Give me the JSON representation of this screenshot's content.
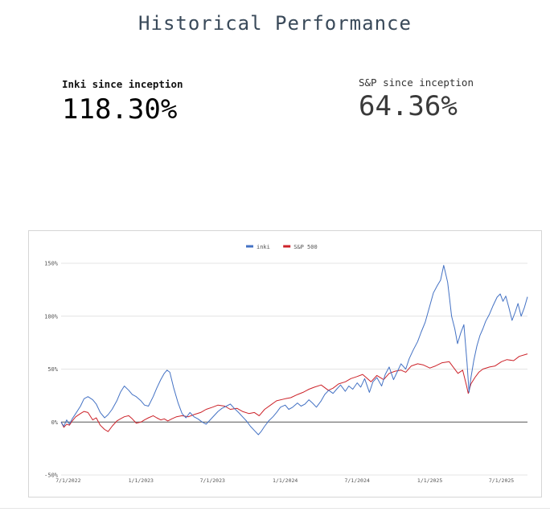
{
  "page": {
    "title": "Historical Performance"
  },
  "stats": [
    {
      "label": "Inki since inception",
      "value": "118.30%"
    },
    {
      "label": "S&P since inception",
      "value": "64.36%"
    }
  ],
  "chart_data": {
    "type": "line",
    "title": "",
    "xlabel": "",
    "ylabel": "",
    "x_range": [
      "2022-06-13",
      "2025-09-05"
    ],
    "xticks": [
      {
        "date": "2022-07-01",
        "label": "7/1/2022"
      },
      {
        "date": "2023-01-01",
        "label": "1/1/2023"
      },
      {
        "date": "2023-07-01",
        "label": "7/1/2023"
      },
      {
        "date": "2024-01-01",
        "label": "1/1/2024"
      },
      {
        "date": "2024-07-01",
        "label": "7/1/2024"
      },
      {
        "date": "2025-01-01",
        "label": "1/1/2025"
      },
      {
        "date": "2025-07-01",
        "label": "7/1/2025"
      }
    ],
    "ylim": [
      -50,
      150
    ],
    "yticks": [
      {
        "value": 150,
        "label": "150%"
      },
      {
        "value": 100,
        "label": "100%"
      },
      {
        "value": 50,
        "label": "50%"
      },
      {
        "value": 0,
        "label": "0%"
      },
      {
        "value": -50,
        "label": "-50%"
      }
    ],
    "grid": true,
    "legend_position": "top-center",
    "series": [
      {
        "name": "inki",
        "color": "#4472c4",
        "points": [
          [
            "2022-06-13",
            0
          ],
          [
            "2022-06-20",
            -4
          ],
          [
            "2022-06-27",
            2
          ],
          [
            "2022-07-04",
            -2
          ],
          [
            "2022-07-11",
            3
          ],
          [
            "2022-07-20",
            8
          ],
          [
            "2022-08-01",
            15
          ],
          [
            "2022-08-10",
            22
          ],
          [
            "2022-08-20",
            24
          ],
          [
            "2022-09-01",
            21
          ],
          [
            "2022-09-10",
            17
          ],
          [
            "2022-09-20",
            9
          ],
          [
            "2022-10-01",
            4
          ],
          [
            "2022-10-10",
            7
          ],
          [
            "2022-10-20",
            12
          ],
          [
            "2022-11-01",
            20
          ],
          [
            "2022-11-10",
            28
          ],
          [
            "2022-11-20",
            34
          ],
          [
            "2022-12-01",
            30
          ],
          [
            "2022-12-10",
            26
          ],
          [
            "2022-12-20",
            24
          ],
          [
            "2023-01-01",
            20
          ],
          [
            "2023-01-10",
            16
          ],
          [
            "2023-01-20",
            15
          ],
          [
            "2023-02-01",
            24
          ],
          [
            "2023-02-10",
            32
          ],
          [
            "2023-02-20",
            40
          ],
          [
            "2023-03-01",
            46
          ],
          [
            "2023-03-08",
            49
          ],
          [
            "2023-03-15",
            47
          ],
          [
            "2023-03-25",
            32
          ],
          [
            "2023-04-05",
            18
          ],
          [
            "2023-04-15",
            8
          ],
          [
            "2023-04-25",
            4
          ],
          [
            "2023-05-05",
            9
          ],
          [
            "2023-05-15",
            5
          ],
          [
            "2023-05-25",
            3
          ],
          [
            "2023-06-05",
            0
          ],
          [
            "2023-06-15",
            -2
          ],
          [
            "2023-06-25",
            2
          ],
          [
            "2023-07-05",
            6
          ],
          [
            "2023-07-15",
            10
          ],
          [
            "2023-07-25",
            13
          ],
          [
            "2023-08-05",
            15
          ],
          [
            "2023-08-15",
            17
          ],
          [
            "2023-08-25",
            13
          ],
          [
            "2023-09-05",
            9
          ],
          [
            "2023-09-15",
            5
          ],
          [
            "2023-09-25",
            1
          ],
          [
            "2023-10-05",
            -4
          ],
          [
            "2023-10-15",
            -8
          ],
          [
            "2023-10-25",
            -12
          ],
          [
            "2023-11-01",
            -9
          ],
          [
            "2023-11-10",
            -4
          ],
          [
            "2023-11-20",
            1
          ],
          [
            "2023-12-01",
            5
          ],
          [
            "2023-12-10",
            9
          ],
          [
            "2023-12-20",
            14
          ],
          [
            "2024-01-01",
            16
          ],
          [
            "2024-01-10",
            12
          ],
          [
            "2024-01-20",
            14
          ],
          [
            "2024-02-01",
            18
          ],
          [
            "2024-02-10",
            15
          ],
          [
            "2024-02-20",
            17
          ],
          [
            "2024-03-01",
            21
          ],
          [
            "2024-03-10",
            18
          ],
          [
            "2024-03-20",
            14
          ],
          [
            "2024-04-01",
            20
          ],
          [
            "2024-04-10",
            26
          ],
          [
            "2024-04-20",
            30
          ],
          [
            "2024-05-01",
            27
          ],
          [
            "2024-05-10",
            31
          ],
          [
            "2024-05-20",
            35
          ],
          [
            "2024-06-01",
            29
          ],
          [
            "2024-06-10",
            34
          ],
          [
            "2024-06-20",
            31
          ],
          [
            "2024-07-01",
            37
          ],
          [
            "2024-07-10",
            33
          ],
          [
            "2024-07-20",
            41
          ],
          [
            "2024-08-01",
            28
          ],
          [
            "2024-08-10",
            38
          ],
          [
            "2024-08-20",
            42
          ],
          [
            "2024-09-01",
            34
          ],
          [
            "2024-09-10",
            45
          ],
          [
            "2024-09-20",
            52
          ],
          [
            "2024-10-01",
            40
          ],
          [
            "2024-10-10",
            47
          ],
          [
            "2024-10-20",
            55
          ],
          [
            "2024-11-01",
            50
          ],
          [
            "2024-11-10",
            60
          ],
          [
            "2024-11-20",
            68
          ],
          [
            "2024-12-01",
            76
          ],
          [
            "2024-12-10",
            85
          ],
          [
            "2024-12-20",
            94
          ],
          [
            "2025-01-01",
            110
          ],
          [
            "2025-01-10",
            122
          ],
          [
            "2025-01-20",
            129
          ],
          [
            "2025-01-28",
            134
          ],
          [
            "2025-02-05",
            148
          ],
          [
            "2025-02-10",
            140
          ],
          [
            "2025-02-15",
            132
          ],
          [
            "2025-02-20",
            116
          ],
          [
            "2025-02-25",
            100
          ],
          [
            "2025-03-05",
            88
          ],
          [
            "2025-03-12",
            74
          ],
          [
            "2025-03-20",
            84
          ],
          [
            "2025-03-28",
            92
          ],
          [
            "2025-04-05",
            56
          ],
          [
            "2025-04-10",
            28
          ],
          [
            "2025-04-15",
            42
          ],
          [
            "2025-04-22",
            58
          ],
          [
            "2025-04-30",
            72
          ],
          [
            "2025-05-08",
            82
          ],
          [
            "2025-05-15",
            88
          ],
          [
            "2025-05-22",
            95
          ],
          [
            "2025-06-01",
            102
          ],
          [
            "2025-06-10",
            110
          ],
          [
            "2025-06-20",
            118
          ],
          [
            "2025-06-28",
            121
          ],
          [
            "2025-07-05",
            114
          ],
          [
            "2025-07-12",
            119
          ],
          [
            "2025-07-20",
            108
          ],
          [
            "2025-07-28",
            96
          ],
          [
            "2025-08-05",
            104
          ],
          [
            "2025-08-12",
            112
          ],
          [
            "2025-08-20",
            100
          ],
          [
            "2025-08-28",
            108
          ],
          [
            "2025-09-05",
            118.3
          ]
        ]
      },
      {
        "name": "S&P 500",
        "color": "#cc2229",
        "points": [
          [
            "2022-06-13",
            0
          ],
          [
            "2022-06-20",
            -5
          ],
          [
            "2022-06-27",
            -2
          ],
          [
            "2022-07-04",
            -3
          ],
          [
            "2022-07-11",
            1
          ],
          [
            "2022-07-20",
            5
          ],
          [
            "2022-08-01",
            8
          ],
          [
            "2022-08-10",
            10
          ],
          [
            "2022-08-20",
            9
          ],
          [
            "2022-09-01",
            2
          ],
          [
            "2022-09-10",
            4
          ],
          [
            "2022-09-20",
            -3
          ],
          [
            "2022-10-01",
            -7
          ],
          [
            "2022-10-10",
            -9
          ],
          [
            "2022-10-20",
            -4
          ],
          [
            "2022-11-01",
            1
          ],
          [
            "2022-11-10",
            3
          ],
          [
            "2022-11-20",
            5
          ],
          [
            "2022-12-01",
            6
          ],
          [
            "2022-12-10",
            3
          ],
          [
            "2022-12-20",
            -1
          ],
          [
            "2023-01-01",
            0
          ],
          [
            "2023-01-10",
            2
          ],
          [
            "2023-01-20",
            4
          ],
          [
            "2023-02-01",
            6
          ],
          [
            "2023-02-10",
            4
          ],
          [
            "2023-02-20",
            2
          ],
          [
            "2023-03-01",
            3
          ],
          [
            "2023-03-10",
            1
          ],
          [
            "2023-03-20",
            3
          ],
          [
            "2023-04-01",
            5
          ],
          [
            "2023-04-15",
            6
          ],
          [
            "2023-05-01",
            5
          ],
          [
            "2023-05-15",
            7
          ],
          [
            "2023-06-01",
            9
          ],
          [
            "2023-06-15",
            12
          ],
          [
            "2023-07-01",
            14
          ],
          [
            "2023-07-15",
            16
          ],
          [
            "2023-08-01",
            15
          ],
          [
            "2023-08-15",
            12
          ],
          [
            "2023-09-01",
            13
          ],
          [
            "2023-09-15",
            10
          ],
          [
            "2023-10-01",
            8
          ],
          [
            "2023-10-15",
            9
          ],
          [
            "2023-10-27",
            6
          ],
          [
            "2023-11-10",
            12
          ],
          [
            "2023-11-25",
            16
          ],
          [
            "2023-12-10",
            20
          ],
          [
            "2024-01-01",
            22
          ],
          [
            "2024-01-15",
            23
          ],
          [
            "2024-02-01",
            26
          ],
          [
            "2024-02-15",
            28
          ],
          [
            "2024-03-01",
            31
          ],
          [
            "2024-03-15",
            33
          ],
          [
            "2024-04-01",
            35
          ],
          [
            "2024-04-19",
            30
          ],
          [
            "2024-05-01",
            32
          ],
          [
            "2024-05-15",
            36
          ],
          [
            "2024-06-01",
            38
          ],
          [
            "2024-06-15",
            41
          ],
          [
            "2024-07-01",
            43
          ],
          [
            "2024-07-15",
            45
          ],
          [
            "2024-08-05",
            38
          ],
          [
            "2024-08-20",
            44
          ],
          [
            "2024-09-06",
            40
          ],
          [
            "2024-09-20",
            46
          ],
          [
            "2024-10-05",
            48
          ],
          [
            "2024-10-20",
            49
          ],
          [
            "2024-11-01",
            47
          ],
          [
            "2024-11-15",
            53
          ],
          [
            "2024-12-01",
            55
          ],
          [
            "2024-12-15",
            54
          ],
          [
            "2025-01-01",
            51
          ],
          [
            "2025-01-15",
            53
          ],
          [
            "2025-02-01",
            56
          ],
          [
            "2025-02-19",
            57
          ],
          [
            "2025-03-01",
            52
          ],
          [
            "2025-03-13",
            46
          ],
          [
            "2025-03-25",
            49
          ],
          [
            "2025-04-04",
            34
          ],
          [
            "2025-04-08",
            27
          ],
          [
            "2025-04-15",
            36
          ],
          [
            "2025-04-25",
            42
          ],
          [
            "2025-05-05",
            47
          ],
          [
            "2025-05-15",
            50
          ],
          [
            "2025-06-01",
            52
          ],
          [
            "2025-06-15",
            53
          ],
          [
            "2025-07-01",
            57
          ],
          [
            "2025-07-15",
            59
          ],
          [
            "2025-08-01",
            58
          ],
          [
            "2025-08-15",
            62
          ],
          [
            "2025-09-05",
            64.36
          ]
        ]
      }
    ]
  }
}
